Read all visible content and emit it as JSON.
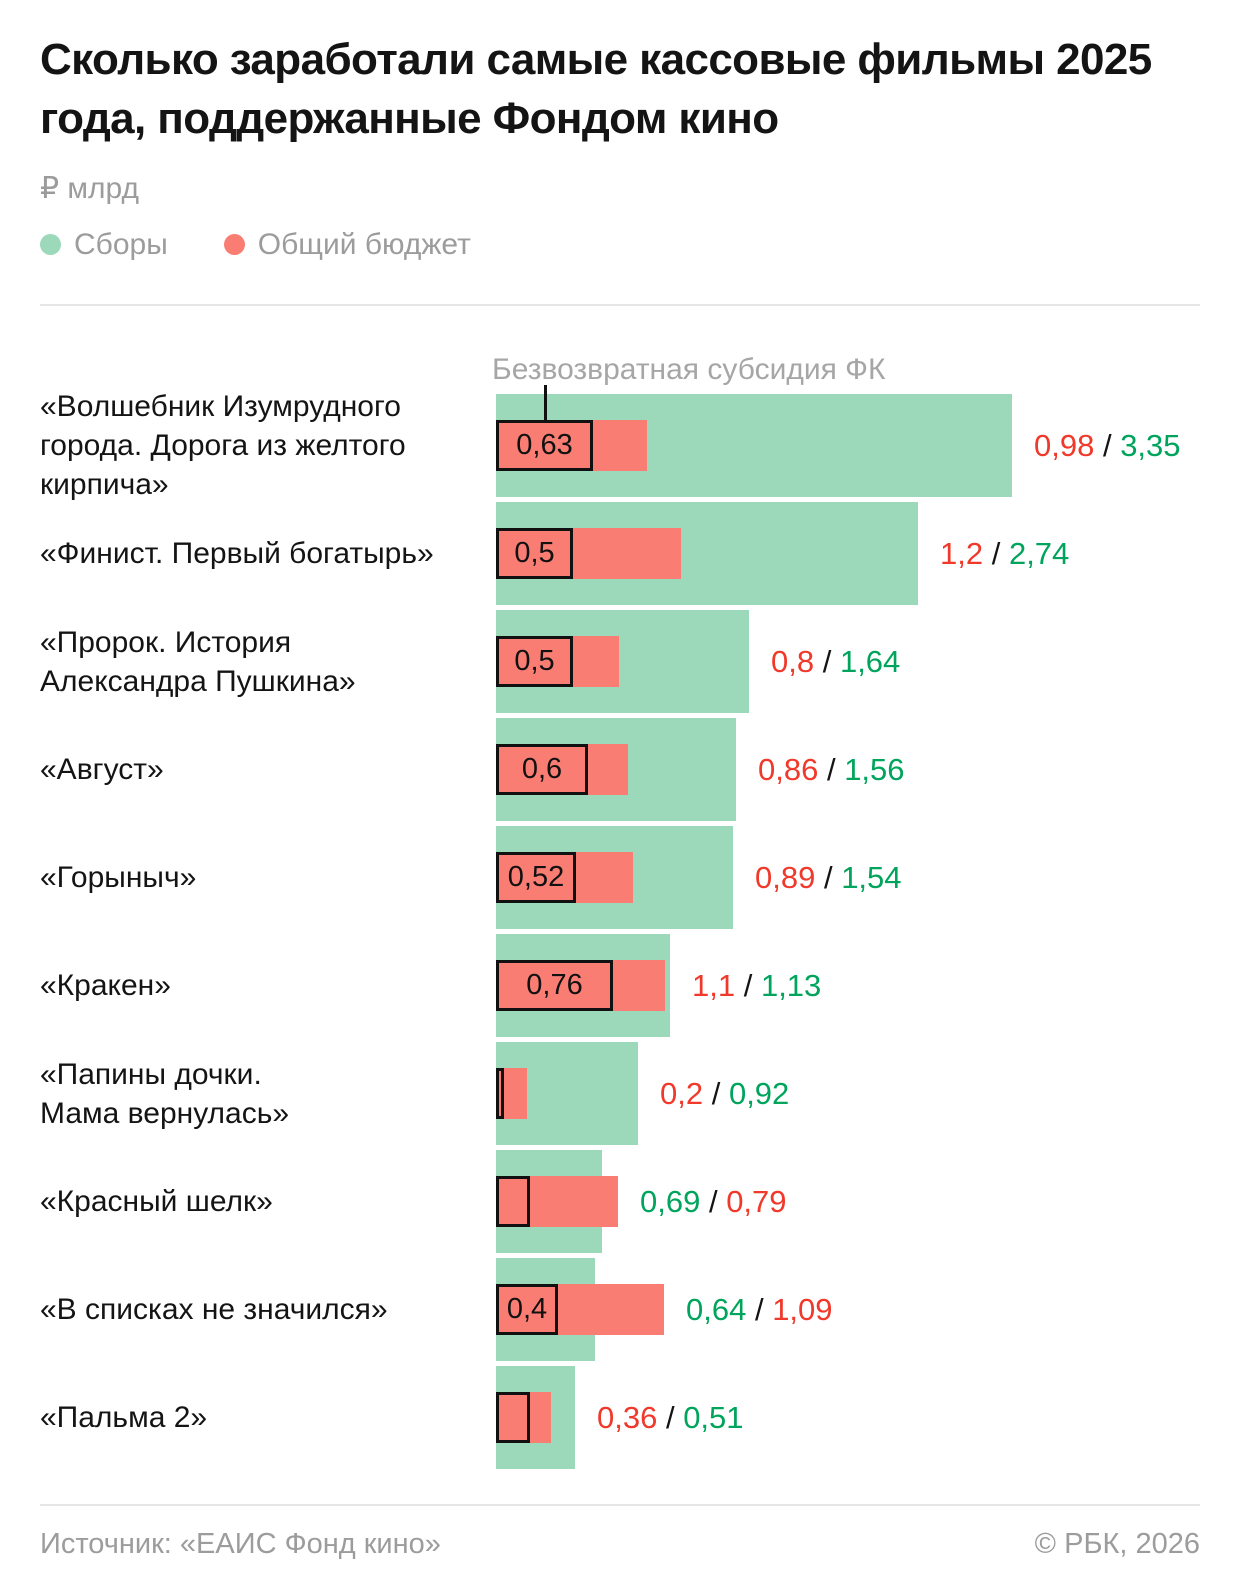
{
  "title": "Сколько заработали самые кассовые фильмы 2025 года, поддержанные Фондом кино",
  "units_label": "₽ млрд",
  "legend": {
    "collections": "Сборы",
    "budget": "Общий бюджет"
  },
  "annotation_label": "Безвозвратная субсидия ФК",
  "footer": {
    "source": "Источник: «ЕАИС Фонд кино»",
    "copyright": "© РБК, 2026"
  },
  "colors": {
    "collections_bar": "#9CD8BA",
    "budget_bar": "#F97D72",
    "collections_text": "#00A45C",
    "budget_text": "#F0392B",
    "muted_text": "#9C9C9C",
    "ink": "#141414",
    "divider": "#E6E6E6"
  },
  "chart_data": {
    "type": "bar",
    "orientation": "horizontal",
    "unit": "₽ млрд",
    "legend_position": "top",
    "series": [
      {
        "name": "Сборы",
        "color": "#9CD8BA"
      },
      {
        "name": "Общий бюджет",
        "color": "#F97D72"
      },
      {
        "name": "Безвозвратная субсидия ФК",
        "style": "black outlined box inside budget bar"
      }
    ],
    "rows": [
      {
        "label": "«Волшебник Изумрудного\nгорода. Дорога из желтого\nкирпича»",
        "collections": 3.35,
        "budget": 0.98,
        "subsidy_label": "0,63",
        "subsidy_units": 0.63,
        "values_display": [
          {
            "text": "0,98",
            "series": "budget"
          },
          {
            "text": "3,35",
            "series": "collections"
          }
        ]
      },
      {
        "label": "«Финист. Первый богатырь»",
        "collections": 2.74,
        "budget": 1.2,
        "subsidy_label": "0,5",
        "subsidy_units": 0.5,
        "values_display": [
          {
            "text": "1,2",
            "series": "budget"
          },
          {
            "text": "2,74",
            "series": "collections"
          }
        ]
      },
      {
        "label": "«Пророк. История\nАлександра Пушкина»",
        "collections": 1.64,
        "budget": 0.8,
        "subsidy_label": "0,5",
        "subsidy_units": 0.5,
        "values_display": [
          {
            "text": "0,8",
            "series": "budget"
          },
          {
            "text": "1,64",
            "series": "collections"
          }
        ]
      },
      {
        "label": "«Август»",
        "collections": 1.56,
        "budget": 0.86,
        "subsidy_label": "0,6",
        "subsidy_units": 0.6,
        "values_display": [
          {
            "text": "0,86",
            "series": "budget"
          },
          {
            "text": "1,56",
            "series": "collections"
          }
        ]
      },
      {
        "label": "«Горыныч»",
        "collections": 1.54,
        "budget": 0.89,
        "subsidy_label": "0,52",
        "subsidy_units": 0.52,
        "values_display": [
          {
            "text": "0,89",
            "series": "budget"
          },
          {
            "text": "1,54",
            "series": "collections"
          }
        ]
      },
      {
        "label": "«Кракен»",
        "collections": 1.13,
        "budget": 1.1,
        "subsidy_label": "0,76",
        "subsidy_units": 0.76,
        "values_display": [
          {
            "text": "1,1",
            "series": "budget"
          },
          {
            "text": "1,13",
            "series": "collections"
          }
        ]
      },
      {
        "label": "«Папины дочки.\nМама вернулась»",
        "collections": 0.92,
        "budget": 0.2,
        "subsidy_label": "",
        "subsidy_units": 0.05,
        "values_display": [
          {
            "text": "0,2",
            "series": "budget"
          },
          {
            "text": "0,92",
            "series": "collections"
          }
        ]
      },
      {
        "label": "«Красный шелк»",
        "collections": 0.69,
        "budget": 0.79,
        "subsidy_label": "",
        "subsidy_units": 0.22,
        "values_display": [
          {
            "text": "0,69",
            "series": "collections"
          },
          {
            "text": "0,79",
            "series": "budget"
          }
        ]
      },
      {
        "label": "«В списках не значился»",
        "collections": 0.64,
        "budget": 1.09,
        "subsidy_label": "0,4",
        "subsidy_units": 0.4,
        "values_display": [
          {
            "text": "0,64",
            "series": "collections"
          },
          {
            "text": "1,09",
            "series": "budget"
          }
        ]
      },
      {
        "label": "«Пальма 2»",
        "collections": 0.51,
        "budget": 0.36,
        "subsidy_label": "",
        "subsidy_units": 0.22,
        "values_display": [
          {
            "text": "0,36",
            "series": "budget"
          },
          {
            "text": "0,51",
            "series": "collections"
          }
        ]
      }
    ]
  }
}
